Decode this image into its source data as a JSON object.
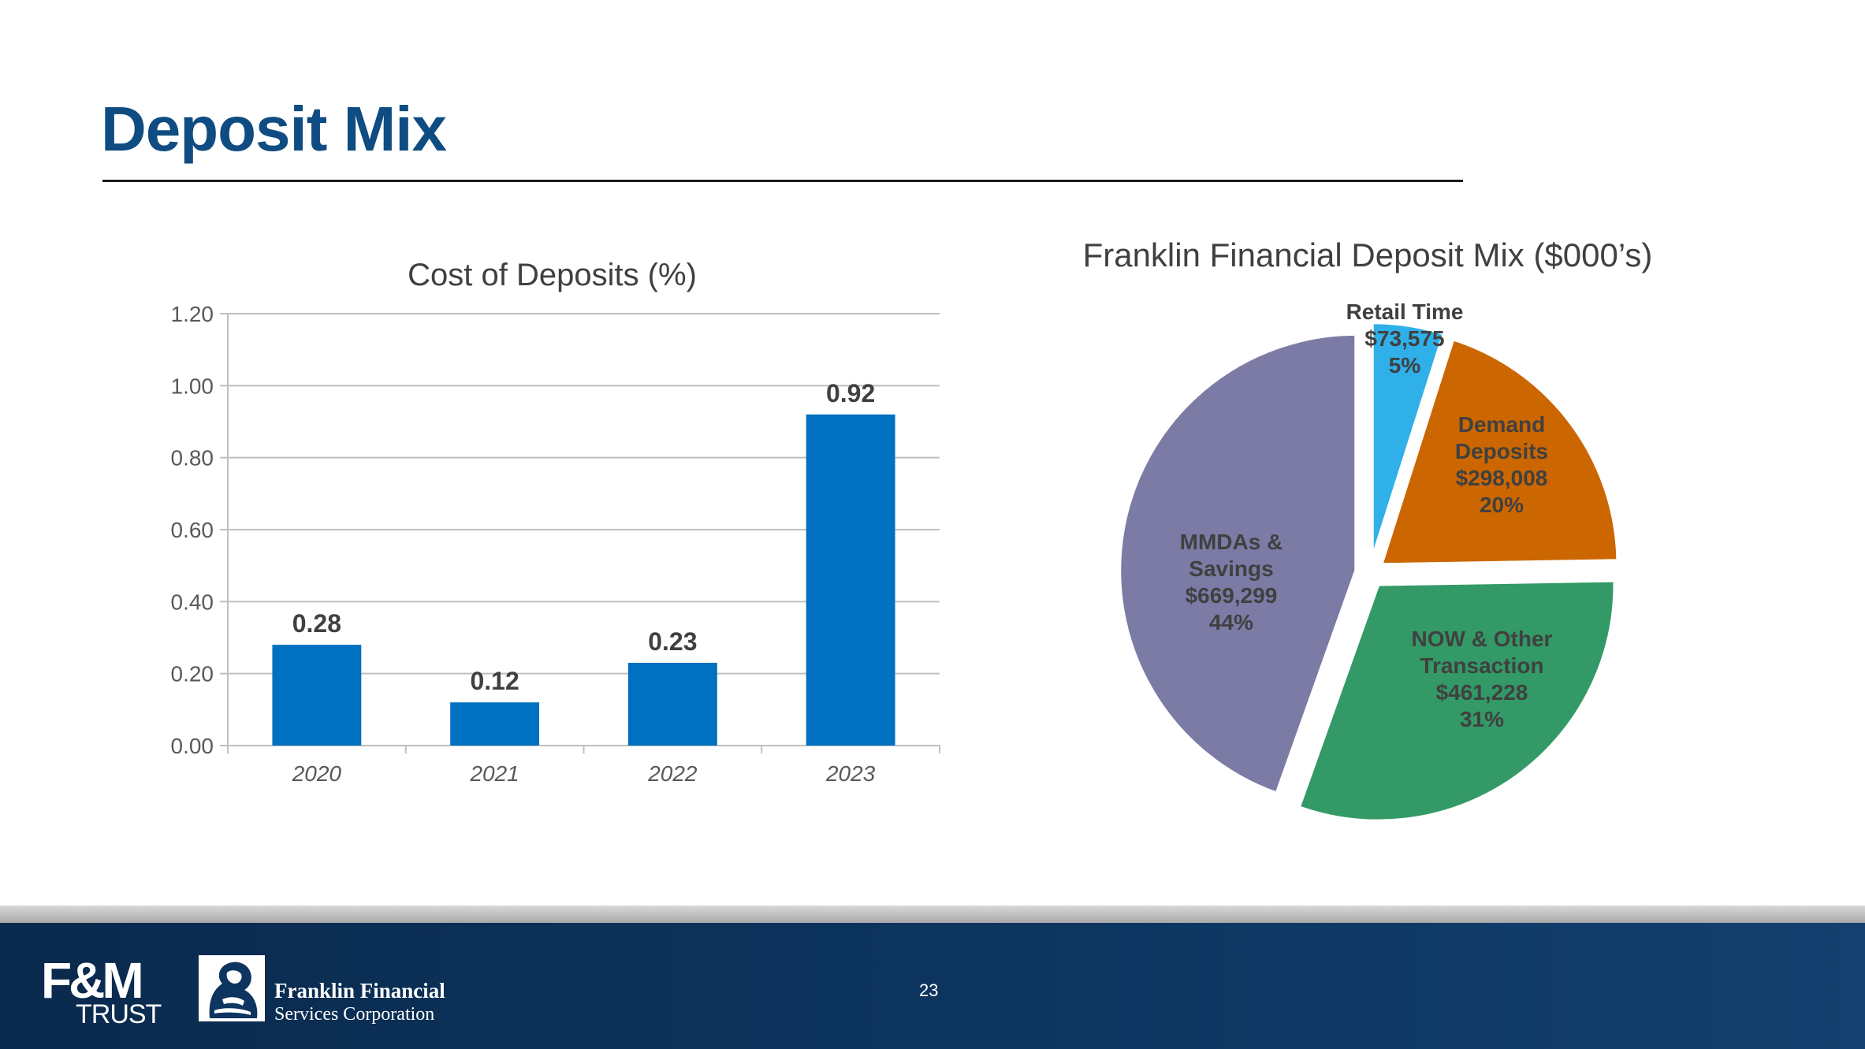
{
  "slide": {
    "title": "Deposit Mix",
    "page_number": "23"
  },
  "footer": {
    "fm_logo_mark": "F&M",
    "fm_logo_sub": "TRUST",
    "ff_name": "Franklin Financial",
    "ff_sub": "Services Corporation"
  },
  "colors": {
    "title": "#0f4c81",
    "bar": "#0070c0",
    "grid": "#bfbfbf",
    "axis_text": "#595959",
    "label_text": "#404040"
  },
  "chart_data": [
    {
      "type": "bar",
      "title": "Cost of Deposits (%)",
      "categories": [
        "2020",
        "2021",
        "2022",
        "2023"
      ],
      "values": [
        0.28,
        0.12,
        0.23,
        0.92
      ],
      "value_labels": [
        "0.28",
        "0.12",
        "0.23",
        "0.92"
      ],
      "ylim": [
        0,
        1.2
      ],
      "yticks": [
        "0.00",
        "0.20",
        "0.40",
        "0.60",
        "0.80",
        "1.00",
        "1.20"
      ],
      "xlabel": "",
      "ylabel": "",
      "grid": true,
      "legend": "none",
      "color": "#0070c0"
    },
    {
      "type": "pie",
      "title": "Franklin Financial Deposit Mix ($000’s)",
      "slices": [
        {
          "name": "Retail Time",
          "amount": "$73,575",
          "percent": "5%",
          "value": 73575,
          "color": "#2fb0e8",
          "label_lines": [
            "Retail Time",
            "$73,575",
            "5%"
          ]
        },
        {
          "name": "Demand Deposits",
          "amount": "$298,008",
          "percent": "20%",
          "value": 298008,
          "color": "#cc6600",
          "label_lines": [
            "Demand",
            "Deposits",
            "$298,008",
            "20%"
          ]
        },
        {
          "name": "NOW & Other Transaction",
          "amount": "$461,228",
          "percent": "31%",
          "value": 461228,
          "color": "#339966",
          "label_lines": [
            "NOW & Other",
            "Transaction",
            "$461,228",
            "31%"
          ]
        },
        {
          "name": "MMDAs & Savings",
          "amount": "$669,299",
          "percent": "44%",
          "value": 669299,
          "color": "#7b7ba6",
          "label_lines": [
            "MMDAs &",
            "Savings",
            "$669,299",
            "44%"
          ]
        }
      ],
      "start": "12 o'clock",
      "direction": "clockwise",
      "exploded": true
    }
  ]
}
